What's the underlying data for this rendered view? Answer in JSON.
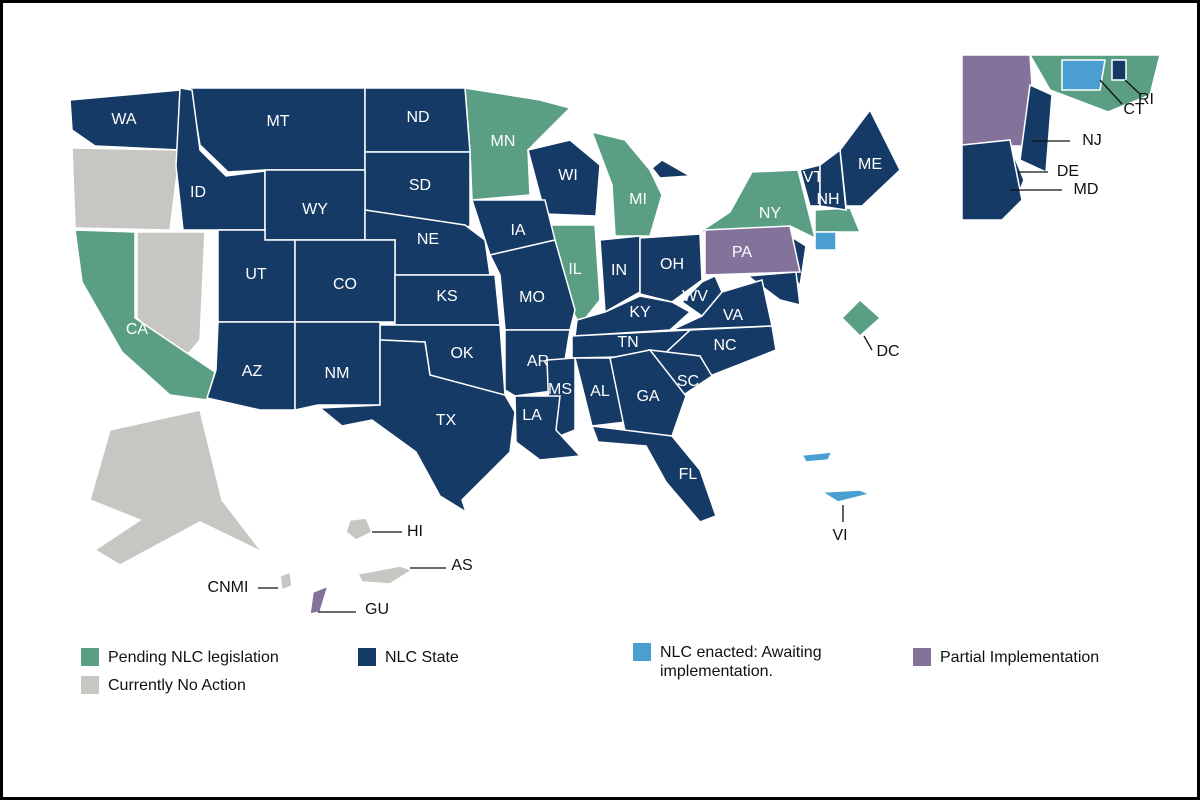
{
  "legend": [
    {
      "label": "Pending NLC legislation",
      "color": "#5a9e84",
      "states": [
        "MN",
        "MI",
        "IL",
        "NY",
        "CA",
        "DC"
      ]
    },
    {
      "label": "NLC State",
      "color": "#153a66",
      "states": [
        "WA",
        "MT",
        "ND",
        "ID",
        "SD",
        "WI",
        "WY",
        "NE",
        "IA",
        "IN",
        "OH",
        "UT",
        "CO",
        "KS",
        "MO",
        "KY",
        "WV",
        "VA",
        "NC",
        "TN",
        "OK",
        "AR",
        "AZ",
        "NM",
        "SC",
        "MS",
        "AL",
        "GA",
        "TX",
        "LA",
        "FL",
        "ME",
        "VT",
        "NH",
        "NJ",
        "DE",
        "MD",
        "RI"
      ]
    },
    {
      "label": "NLC enacted: Awaiting implementation.",
      "color": "#4a9fd0",
      "states": [
        "VI",
        "CT"
      ]
    },
    {
      "label": "Partial Implementation",
      "color": "#83729a",
      "states": [
        "PA",
        "GU"
      ]
    },
    {
      "label": "Currently No Action",
      "color": "#c6c6c2",
      "states": [
        "HI",
        "AS",
        "CNMI"
      ]
    }
  ]
}
